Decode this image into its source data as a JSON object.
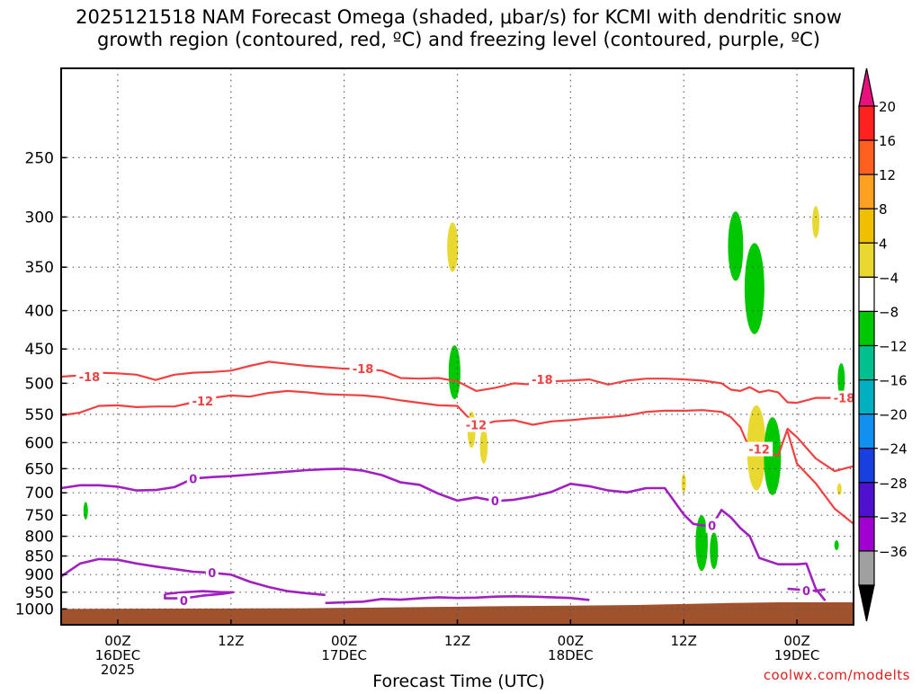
{
  "header": {
    "title_line1": "2025121518 NAM Forecast Omega (shaded, μbar/s) for KCMI with dendritic snow",
    "title_line2": "growth region (contoured, red, ºC) and freezing level (contoured, purple, ºC)"
  },
  "watermark": "coolwx.com/modelts",
  "chart_data": {
    "type": "heatmap",
    "title": "2025121518 NAM Forecast Omega (shaded, μbar/s) for KCMI with dendritic snow growth region (contoured, red, ºC) and freezing level (contoured, purple, ºC)",
    "xlabel": "Forecast Time (UTC)",
    "ylabel": "",
    "x_range_hours": [
      -6,
      78
    ],
    "x_ticks": [
      {
        "hour": 0,
        "lines": [
          "00Z",
          "16DEC",
          "2025"
        ]
      },
      {
        "hour": 12,
        "lines": [
          "12Z"
        ]
      },
      {
        "hour": 24,
        "lines": [
          "00Z",
          "17DEC"
        ]
      },
      {
        "hour": 36,
        "lines": [
          "12Z"
        ]
      },
      {
        "hour": 48,
        "lines": [
          "00Z",
          "18DEC"
        ]
      },
      {
        "hour": 60,
        "lines": [
          "12Z"
        ]
      },
      {
        "hour": 72,
        "lines": [
          "00Z",
          "19DEC"
        ]
      }
    ],
    "y_scale": "log-pressure",
    "y_range_hpa": [
      1050,
      190
    ],
    "y_ticks": [
      250,
      300,
      350,
      400,
      450,
      500,
      550,
      600,
      650,
      700,
      750,
      800,
      850,
      900,
      950,
      1000
    ],
    "grid": true,
    "colorbar": {
      "labels": [
        "20",
        "16",
        "12",
        "8",
        "4",
        "−4",
        "−8",
        "−12",
        "−16",
        "−20",
        "−24",
        "−28",
        "−32",
        "−36"
      ],
      "colors": [
        "#ff2020",
        "#ff6020",
        "#ffa020",
        "#f0c000",
        "#e8d830",
        "#ffffff",
        "#00c800",
        "#00c090",
        "#00b0c0",
        "#1090f0",
        "#1840e0",
        "#5010d0",
        "#a000d0",
        "#a0a0a0"
      ],
      "top_arrow_color": "#e8107c",
      "bottom_arrow_color": "#000000"
    },
    "contours": [
      {
        "kind": "dgz",
        "label": "-18",
        "color": "#f04040",
        "label_points": [
          {
            "hour": -3,
            "p": 490
          },
          {
            "hour": 26,
            "p": 478
          },
          {
            "hour": 45,
            "p": 494
          },
          {
            "hour": 77,
            "p": 523
          }
        ],
        "points": [
          [
            -6,
            490
          ],
          [
            -4,
            488
          ],
          [
            -2,
            484
          ],
          [
            0,
            485
          ],
          [
            2,
            487
          ],
          [
            4,
            495
          ],
          [
            6,
            487
          ],
          [
            8,
            484
          ],
          [
            10,
            483
          ],
          [
            12,
            481
          ],
          [
            14,
            474
          ],
          [
            16,
            468
          ],
          [
            18,
            471
          ],
          [
            20,
            474
          ],
          [
            22,
            476
          ],
          [
            24,
            478
          ],
          [
            26,
            478
          ],
          [
            28,
            481
          ],
          [
            30,
            492
          ],
          [
            32,
            493
          ],
          [
            34,
            492
          ],
          [
            36,
            497
          ],
          [
            38,
            512
          ],
          [
            40,
            507
          ],
          [
            42,
            500
          ],
          [
            44,
            502
          ],
          [
            46,
            497
          ],
          [
            48,
            496
          ],
          [
            50,
            494
          ],
          [
            52,
            502
          ],
          [
            54,
            496
          ],
          [
            56,
            493
          ],
          [
            58,
            493
          ],
          [
            60,
            494
          ],
          [
            62,
            496
          ],
          [
            64,
            500
          ],
          [
            65,
            510
          ],
          [
            66,
            512
          ],
          [
            67,
            506
          ],
          [
            68,
            514
          ],
          [
            69,
            511
          ],
          [
            70,
            514
          ],
          [
            71,
            530
          ],
          [
            72,
            531
          ],
          [
            74,
            523
          ],
          [
            76,
            523
          ],
          [
            77,
            523
          ]
        ]
      },
      {
        "kind": "dgz",
        "label": "-12",
        "color": "#f04040",
        "label_points": [
          {
            "hour": 9,
            "p": 528
          },
          {
            "hour": 38,
            "p": 568
          },
          {
            "hour": 68,
            "p": 612
          }
        ],
        "points": [
          [
            -6,
            552
          ],
          [
            -4,
            547
          ],
          [
            -2,
            536
          ],
          [
            0,
            535
          ],
          [
            2,
            538
          ],
          [
            4,
            537
          ],
          [
            6,
            537
          ],
          [
            8,
            530
          ],
          [
            10,
            523
          ],
          [
            12,
            519
          ],
          [
            14,
            521
          ],
          [
            16,
            515
          ],
          [
            18,
            512
          ],
          [
            20,
            514
          ],
          [
            22,
            517
          ],
          [
            24,
            518
          ],
          [
            26,
            519
          ],
          [
            28,
            522
          ],
          [
            30,
            527
          ],
          [
            32,
            531
          ],
          [
            34,
            535
          ],
          [
            36,
            536
          ],
          [
            38,
            570
          ],
          [
            40,
            562
          ],
          [
            42,
            560
          ],
          [
            44,
            568
          ],
          [
            46,
            562
          ],
          [
            48,
            560
          ],
          [
            50,
            557
          ],
          [
            52,
            555
          ],
          [
            54,
            552
          ],
          [
            56,
            546
          ],
          [
            58,
            544
          ],
          [
            60,
            544
          ],
          [
            62,
            543
          ],
          [
            64,
            546
          ],
          [
            65,
            555
          ],
          [
            66,
            572
          ],
          [
            67,
            612
          ],
          [
            68,
            612
          ],
          [
            70,
            625
          ],
          [
            71,
            575
          ],
          [
            72,
            590
          ],
          [
            74,
            630
          ],
          [
            76,
            655
          ],
          [
            78,
            645
          ]
        ]
      },
      {
        "kind": "dgz",
        "label": "",
        "color": "#f04040",
        "points": [
          [
            71,
            580
          ],
          [
            72,
            640
          ],
          [
            74,
            680
          ],
          [
            76,
            735
          ],
          [
            78,
            770
          ]
        ]
      },
      {
        "kind": "freezing",
        "label": "0",
        "color": "#a020c0",
        "label_points": [
          {
            "hour": 8,
            "p": 670
          },
          {
            "hour": 40,
            "p": 717
          },
          {
            "hour": 63,
            "p": 774
          }
        ],
        "points": [
          [
            -6,
            690
          ],
          [
            -4,
            684
          ],
          [
            -2,
            684
          ],
          [
            0,
            687
          ],
          [
            2,
            695
          ],
          [
            4,
            694
          ],
          [
            6,
            688
          ],
          [
            8,
            670
          ],
          [
            10,
            667
          ],
          [
            12,
            665
          ],
          [
            14,
            662
          ],
          [
            16,
            659
          ],
          [
            18,
            656
          ],
          [
            20,
            653
          ],
          [
            22,
            651
          ],
          [
            24,
            650
          ],
          [
            26,
            654
          ],
          [
            28,
            663
          ],
          [
            30,
            678
          ],
          [
            32,
            683
          ],
          [
            34,
            702
          ],
          [
            36,
            717
          ],
          [
            38,
            710
          ],
          [
            40,
            718
          ],
          [
            42,
            715
          ],
          [
            44,
            708
          ],
          [
            46,
            698
          ],
          [
            48,
            681
          ],
          [
            50,
            686
          ],
          [
            52,
            695
          ],
          [
            54,
            699
          ],
          [
            56,
            690
          ],
          [
            58,
            690
          ],
          [
            60,
            748
          ],
          [
            61,
            770
          ],
          [
            62,
            774
          ],
          [
            63,
            774
          ],
          [
            64,
            738
          ],
          [
            65,
            755
          ],
          [
            66,
            780
          ],
          [
            67,
            800
          ],
          [
            68,
            855
          ],
          [
            70,
            872
          ],
          [
            72,
            872
          ],
          [
            73,
            870
          ],
          [
            73.5,
            905
          ],
          [
            74,
            940
          ],
          [
            75,
            975
          ]
        ]
      },
      {
        "kind": "freezing",
        "label": "0",
        "color": "#a020c0",
        "label_points": [
          {
            "hour": 10,
            "p": 895
          }
        ],
        "points": [
          [
            -6,
            905
          ],
          [
            -4,
            870
          ],
          [
            -2,
            858
          ],
          [
            0,
            860
          ],
          [
            2,
            870
          ],
          [
            4,
            878
          ],
          [
            6,
            885
          ],
          [
            8,
            892
          ],
          [
            10,
            895
          ],
          [
            12,
            900
          ],
          [
            14,
            920
          ],
          [
            16,
            935
          ],
          [
            18,
            947
          ],
          [
            20,
            953
          ],
          [
            22,
            958
          ]
        ]
      },
      {
        "kind": "freezing",
        "label": "0",
        "color": "#a020c0",
        "label_points": [
          {
            "hour": 7,
            "p": 975
          }
        ],
        "points": [
          [
            5,
            955
          ],
          [
            7,
            950
          ],
          [
            9,
            947
          ],
          [
            11,
            950
          ],
          [
            12.2,
            950
          ],
          [
            11,
            955
          ],
          [
            9,
            960
          ],
          [
            7,
            968
          ],
          [
            5,
            968
          ],
          [
            5,
            955
          ]
        ]
      },
      {
        "kind": "freezing",
        "label": "",
        "color": "#a020c0",
        "points": [
          [
            22,
            982
          ],
          [
            26,
            978
          ],
          [
            28,
            970
          ],
          [
            30,
            972
          ],
          [
            32,
            968
          ],
          [
            34,
            965
          ],
          [
            36,
            967
          ],
          [
            38,
            966
          ],
          [
            40,
            963
          ],
          [
            42,
            962
          ],
          [
            44,
            963
          ],
          [
            46,
            965
          ],
          [
            48,
            967
          ],
          [
            49,
            970
          ],
          [
            50,
            973
          ]
        ]
      },
      {
        "kind": "freezing",
        "label": "0",
        "color": "#a020c0",
        "label_points": [
          {
            "hour": 73,
            "p": 945
          }
        ],
        "points": [
          [
            71,
            940
          ],
          [
            73,
            944
          ],
          [
            74,
            946
          ],
          [
            75,
            942
          ]
        ]
      }
    ],
    "omega_blobs": [
      {
        "category": "4 to 8",
        "color": "#e8d830",
        "hour": 35.5,
        "p_top": 305,
        "p_bottom": 355
      },
      {
        "category": "-4 to -8",
        "color": "#00c800",
        "hour": 35.7,
        "p_top": 445,
        "p_bottom": 525
      },
      {
        "category": "4 to 8",
        "color": "#e8d830",
        "hour": 37.5,
        "p_top": 545,
        "p_bottom": 610
      },
      {
        "category": "4 to 8",
        "color": "#e8d830",
        "hour": 38.8,
        "p_top": 575,
        "p_bottom": 640
      },
      {
        "category": "-4 to -8",
        "color": "#00c800",
        "hour": -3.4,
        "p_top": 720,
        "p_bottom": 760
      },
      {
        "category": "-4 to -8",
        "color": "#00c800",
        "hour": 65.5,
        "p_top": 295,
        "p_bottom": 365
      },
      {
        "category": "-4 to -8",
        "color": "#00c800",
        "hour": 67.5,
        "p_top": 325,
        "p_bottom": 430
      },
      {
        "category": "4 to 8",
        "color": "#e8d830",
        "hour": 74,
        "p_top": 290,
        "p_bottom": 320
      },
      {
        "category": "4 to 8",
        "color": "#e8d830",
        "hour": 67.7,
        "p_top": 535,
        "p_bottom": 695
      },
      {
        "category": "-4 to -8",
        "color": "#00c800",
        "hour": 69.4,
        "p_top": 555,
        "p_bottom": 705
      },
      {
        "category": "-4 to -8",
        "color": "#00c800",
        "hour": 61.9,
        "p_top": 750,
        "p_bottom": 890
      },
      {
        "category": "-4 to -8",
        "color": "#00c800",
        "hour": 63.2,
        "p_top": 790,
        "p_bottom": 885
      },
      {
        "category": "4 to 8",
        "color": "#e8d830",
        "hour": 60,
        "p_top": 660,
        "p_bottom": 700
      },
      {
        "category": "-4 to -8",
        "color": "#00c800",
        "hour": 76.7,
        "p_top": 470,
        "p_bottom": 520
      },
      {
        "category": "-4 to -8",
        "color": "#00c800",
        "hour": 76.2,
        "p_top": 810,
        "p_bottom": 835
      },
      {
        "category": "4 to 8",
        "color": "#e8d830",
        "hour": 76.5,
        "p_top": 680,
        "p_bottom": 705
      }
    ],
    "ground_color": "#a0522d"
  }
}
